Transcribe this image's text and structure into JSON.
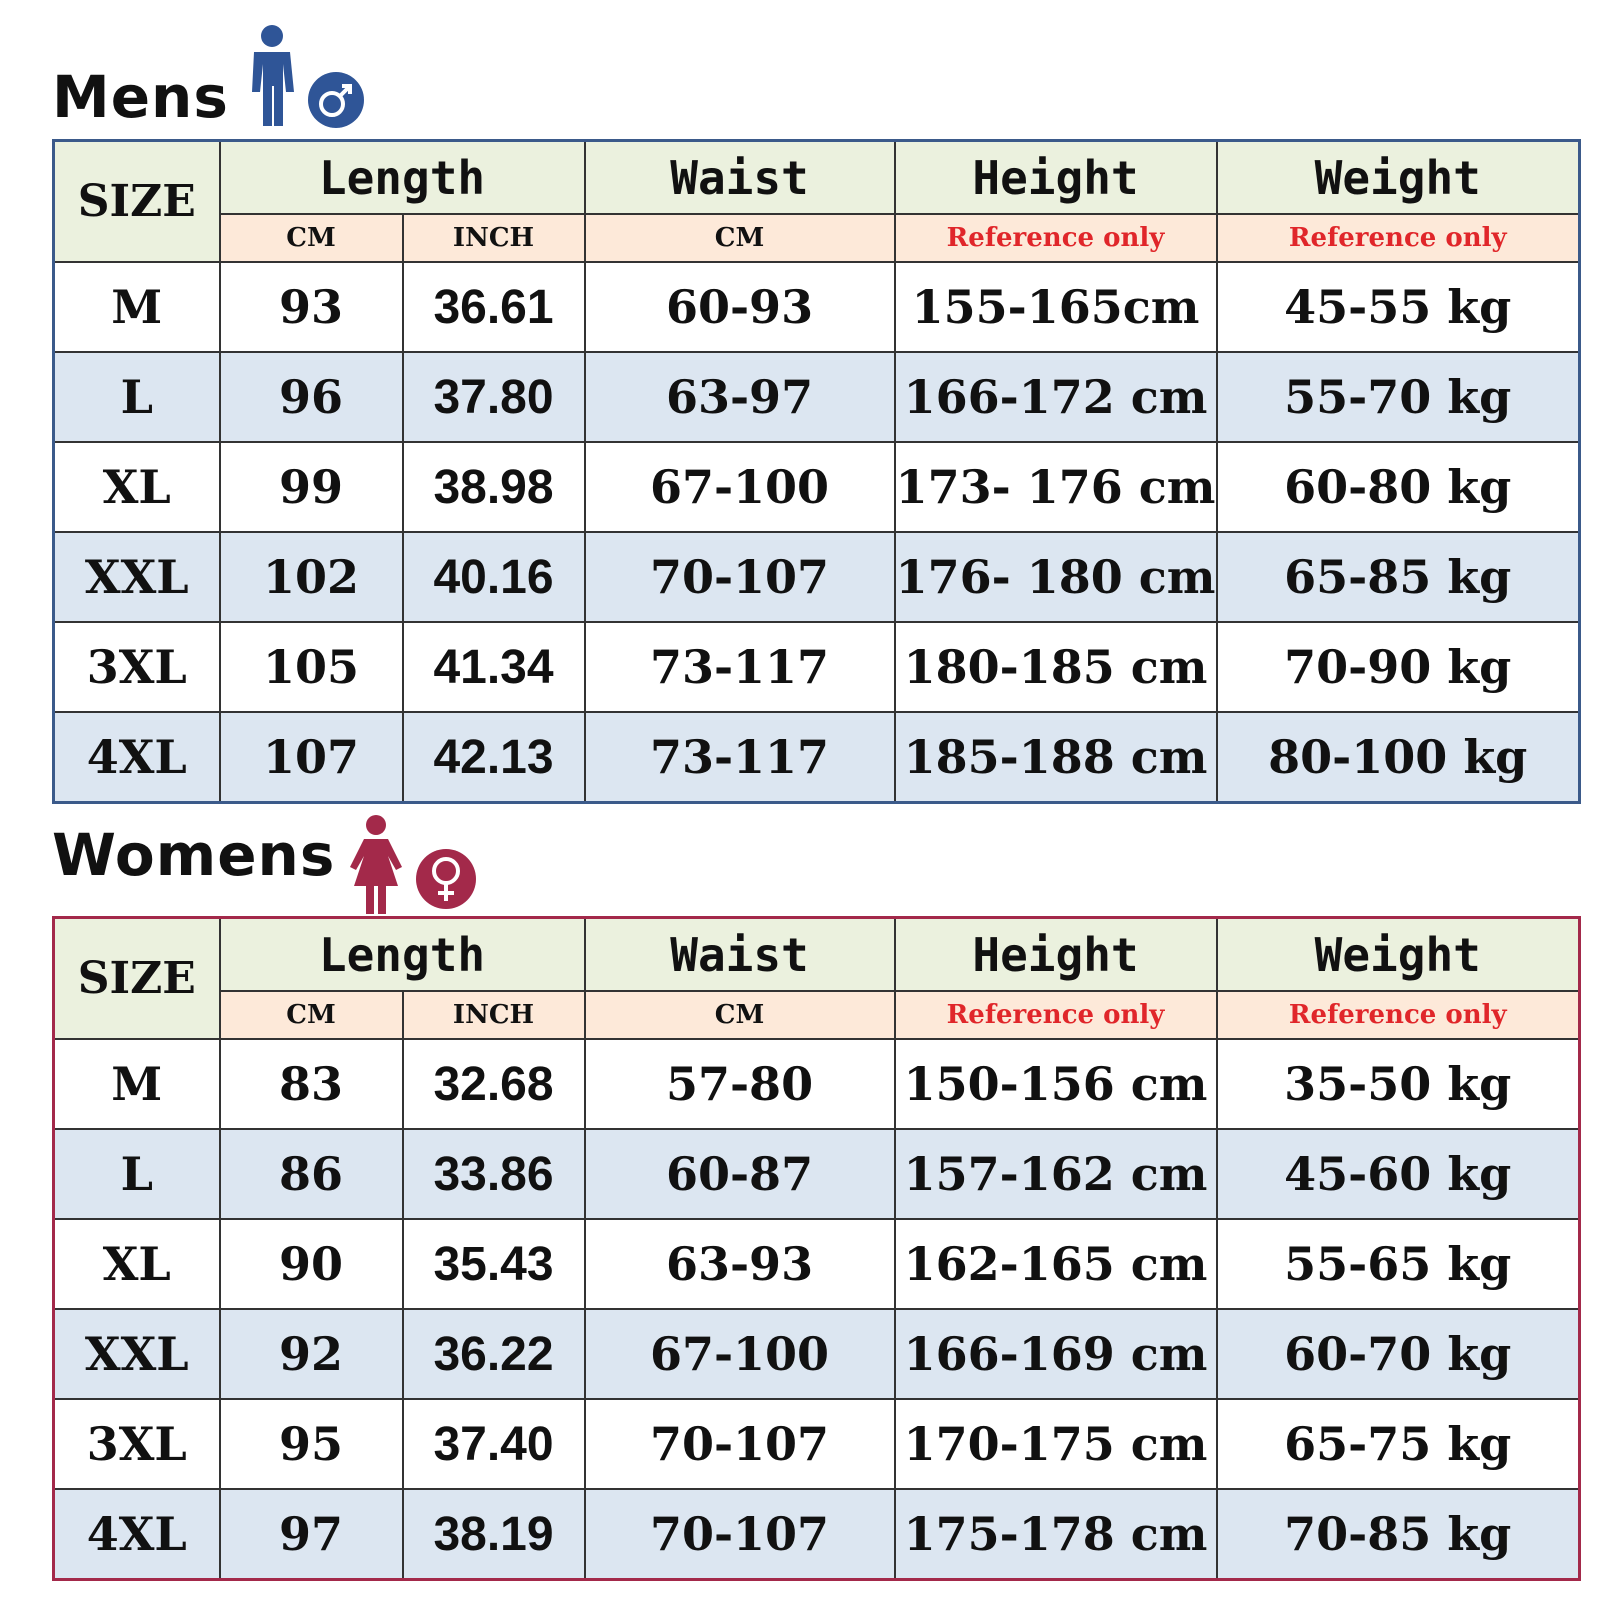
{
  "sections": [
    {
      "title": "Mens",
      "header": [
        "SIZE",
        "Length",
        "Waist",
        "Height",
        "Weight"
      ],
      "subheader": [
        "CM",
        "INCH",
        "CM",
        "Reference only",
        "Reference only"
      ],
      "rows": [
        [
          "M",
          "93",
          "36.61",
          "60-93",
          "155-165cm",
          "45-55 kg"
        ],
        [
          "L",
          "96",
          "37.80",
          "63-97",
          "166-172 cm",
          "55-70 kg"
        ],
        [
          "XL",
          "99",
          "38.98",
          "67-100",
          "173- 176 cm",
          "60-80 kg"
        ],
        [
          "XXL",
          "102",
          "40.16",
          "70-107",
          "176- 180 cm",
          "65-85 kg"
        ],
        [
          "3XL",
          "105",
          "41.34",
          "73-117",
          "180-185 cm",
          "70-90 kg"
        ],
        [
          "4XL",
          "107",
          "42.13",
          "73-117",
          "185-188 cm",
          "80-100 kg"
        ]
      ]
    },
    {
      "title": "Womens",
      "header": [
        "SIZE",
        "Length",
        "Waist",
        "Height",
        "Weight"
      ],
      "subheader": [
        "CM",
        "INCH",
        "CM",
        "Reference only",
        "Reference only"
      ],
      "rows": [
        [
          "M",
          "83",
          "32.68",
          "57-80",
          "150-156 cm",
          "35-50 kg"
        ],
        [
          "L",
          "86",
          "33.86",
          "60-87",
          "157-162 cm",
          "45-60 kg"
        ],
        [
          "XL",
          "90",
          "35.43",
          "63-93",
          "162-165 cm",
          "55-65 kg"
        ],
        [
          "XXL",
          "92",
          "36.22",
          "67-100",
          "166-169 cm",
          "60-70 kg"
        ],
        [
          "3XL",
          "95",
          "37.40",
          "70-107",
          "170-175 cm",
          "65-75 kg"
        ],
        [
          "4XL",
          "97",
          "38.19",
          "70-107",
          "175-178 cm",
          "70-85 kg"
        ]
      ]
    }
  ]
}
